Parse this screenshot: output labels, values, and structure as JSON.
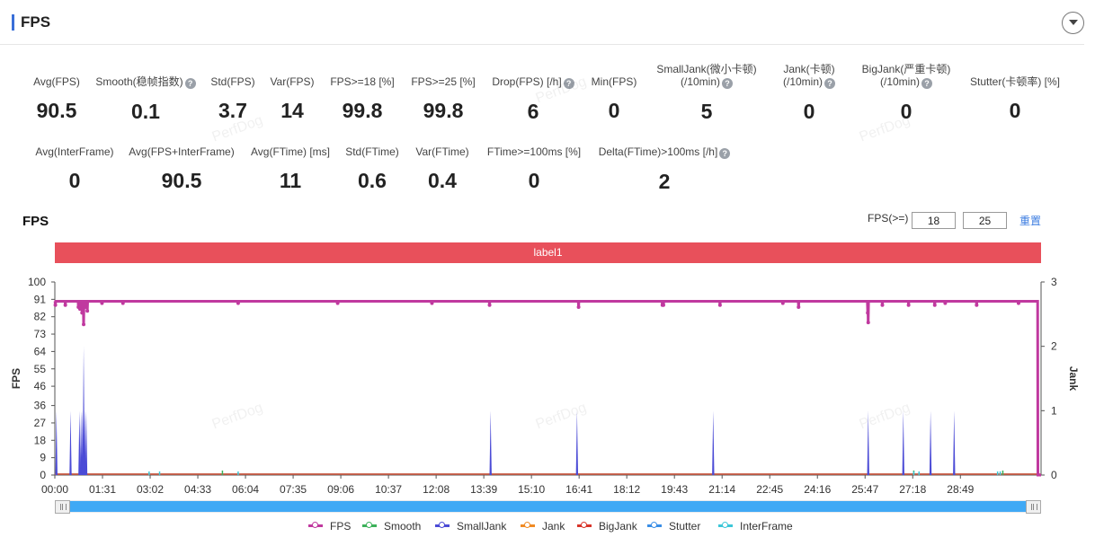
{
  "header": {
    "title": "FPS"
  },
  "stats_row1": [
    {
      "label": "Avg(FPS)",
      "value": "90.5",
      "help": false
    },
    {
      "label": "Smooth(稳帧指数)",
      "value": "0.1",
      "help": true
    },
    {
      "label": "Std(FPS)",
      "value": "3.7",
      "help": false
    },
    {
      "label": "Var(FPS)",
      "value": "14",
      "help": false
    },
    {
      "label": "FPS>=18 [%]",
      "value": "99.8",
      "help": false
    },
    {
      "label": "FPS>=25 [%]",
      "value": "99.8",
      "help": false
    },
    {
      "label": "Drop(FPS) [/h]",
      "value": "6",
      "help": true
    },
    {
      "label": "Min(FPS)",
      "value": "0",
      "help": false
    },
    {
      "label": "SmallJank(微小卡顿)",
      "label2": "(/10min)",
      "value": "5",
      "help": true
    },
    {
      "label": "Jank(卡顿)",
      "label2": "(/10min)",
      "value": "0",
      "help": true
    },
    {
      "label": "BigJank(严重卡顿)",
      "label2": "(/10min)",
      "value": "0",
      "help": true
    },
    {
      "label": "Stutter(卡顿率) [%]",
      "value": "0",
      "help": false
    }
  ],
  "stats_row2": [
    {
      "label": "Avg(InterFrame)",
      "value": "0",
      "help": false
    },
    {
      "label": "Avg(FPS+InterFrame)",
      "value": "90.5",
      "help": false
    },
    {
      "label": "Avg(FTime) [ms]",
      "value": "11",
      "help": false
    },
    {
      "label": "Std(FTime)",
      "value": "0.6",
      "help": false
    },
    {
      "label": "Var(FTime)",
      "value": "0.4",
      "help": false
    },
    {
      "label": "FTime>=100ms [%]",
      "value": "0",
      "help": false
    },
    {
      "label": "Delta(FTime)>100ms [/h]",
      "value": "2",
      "help": true
    }
  ],
  "watermark_text": "PerfDog",
  "chart_section": {
    "title": "FPS",
    "threshold_label": "FPS(>=)",
    "threshold1": "18",
    "threshold2": "25",
    "reset_label": "重置",
    "segment_label": "label1"
  },
  "chart_data": {
    "type": "line",
    "title": "FPS",
    "ylabel": "FPS",
    "y2label": "Jank",
    "ylim": [
      0,
      100
    ],
    "y2lim": [
      0,
      3
    ],
    "yticks": [
      "0",
      "9",
      "18",
      "27",
      "36",
      "46",
      "55",
      "64",
      "73",
      "82",
      "91",
      "100"
    ],
    "y2ticks": [
      "0",
      "1",
      "2",
      "3"
    ],
    "xticks": [
      "00:00",
      "01:31",
      "03:02",
      "04:33",
      "06:04",
      "07:35",
      "09:06",
      "10:37",
      "12:08",
      "13:39",
      "15:10",
      "16:41",
      "18:12",
      "19:43",
      "21:14",
      "22:45",
      "24:16",
      "25:47",
      "27:18",
      "28:49"
    ],
    "x_tick_seconds": 91,
    "duration_seconds": 1883,
    "fps_baseline": 90,
    "fps_dips": [
      {
        "t": 1,
        "v": 88
      },
      {
        "t": 20,
        "v": 88
      },
      {
        "t": 45,
        "v": 87
      },
      {
        "t": 48,
        "v": 86
      },
      {
        "t": 52,
        "v": 84
      },
      {
        "t": 55,
        "v": 78
      },
      {
        "t": 58,
        "v": 87
      },
      {
        "t": 62,
        "v": 85
      },
      {
        "t": 90,
        "v": 89
      },
      {
        "t": 130,
        "v": 89
      },
      {
        "t": 350,
        "v": 89
      },
      {
        "t": 540,
        "v": 89
      },
      {
        "t": 720,
        "v": 89
      },
      {
        "t": 830,
        "v": 88
      },
      {
        "t": 1000,
        "v": 87
      },
      {
        "t": 1160,
        "v": 88
      },
      {
        "t": 1162,
        "v": 88
      },
      {
        "t": 1270,
        "v": 88
      },
      {
        "t": 1390,
        "v": 89
      },
      {
        "t": 1420,
        "v": 87
      },
      {
        "t": 1552,
        "v": 84
      },
      {
        "t": 1553,
        "v": 79
      },
      {
        "t": 1580,
        "v": 88
      },
      {
        "t": 1630,
        "v": 88
      },
      {
        "t": 1680,
        "v": 88
      },
      {
        "t": 1700,
        "v": 89
      },
      {
        "t": 1760,
        "v": 88
      },
      {
        "t": 1840,
        "v": 89
      },
      {
        "t": 1877,
        "v": 0
      }
    ],
    "small_jank_spikes": [
      {
        "t": 3,
        "v": 1
      },
      {
        "t": 30,
        "v": 1
      },
      {
        "t": 47,
        "v": 1
      },
      {
        "t": 50,
        "v": 1
      },
      {
        "t": 53,
        "v": 1
      },
      {
        "t": 55,
        "v": 2
      },
      {
        "t": 57,
        "v": 1
      },
      {
        "t": 60,
        "v": 1
      },
      {
        "t": 832,
        "v": 1
      },
      {
        "t": 997,
        "v": 1
      },
      {
        "t": 1257,
        "v": 1
      },
      {
        "t": 1553,
        "v": 1
      },
      {
        "t": 1620,
        "v": 1
      },
      {
        "t": 1672,
        "v": 1
      },
      {
        "t": 1717,
        "v": 1
      }
    ],
    "smooth_ticks": [
      320,
      1553,
      1640,
      1810,
      1878
    ],
    "interframe_ticks": [
      180,
      200,
      350,
      1640,
      1650,
      1800,
      1805
    ],
    "series": [
      {
        "name": "FPS",
        "color": "#c0399f"
      },
      {
        "name": "Smooth",
        "color": "#3cb15a"
      },
      {
        "name": "SmallJank",
        "color": "#4b4bd6"
      },
      {
        "name": "Jank",
        "color": "#f08a24"
      },
      {
        "name": "BigJank",
        "color": "#d8352a"
      },
      {
        "name": "Stutter",
        "color": "#3a8ee6"
      },
      {
        "name": "InterFrame",
        "color": "#3cc7d8"
      }
    ]
  }
}
